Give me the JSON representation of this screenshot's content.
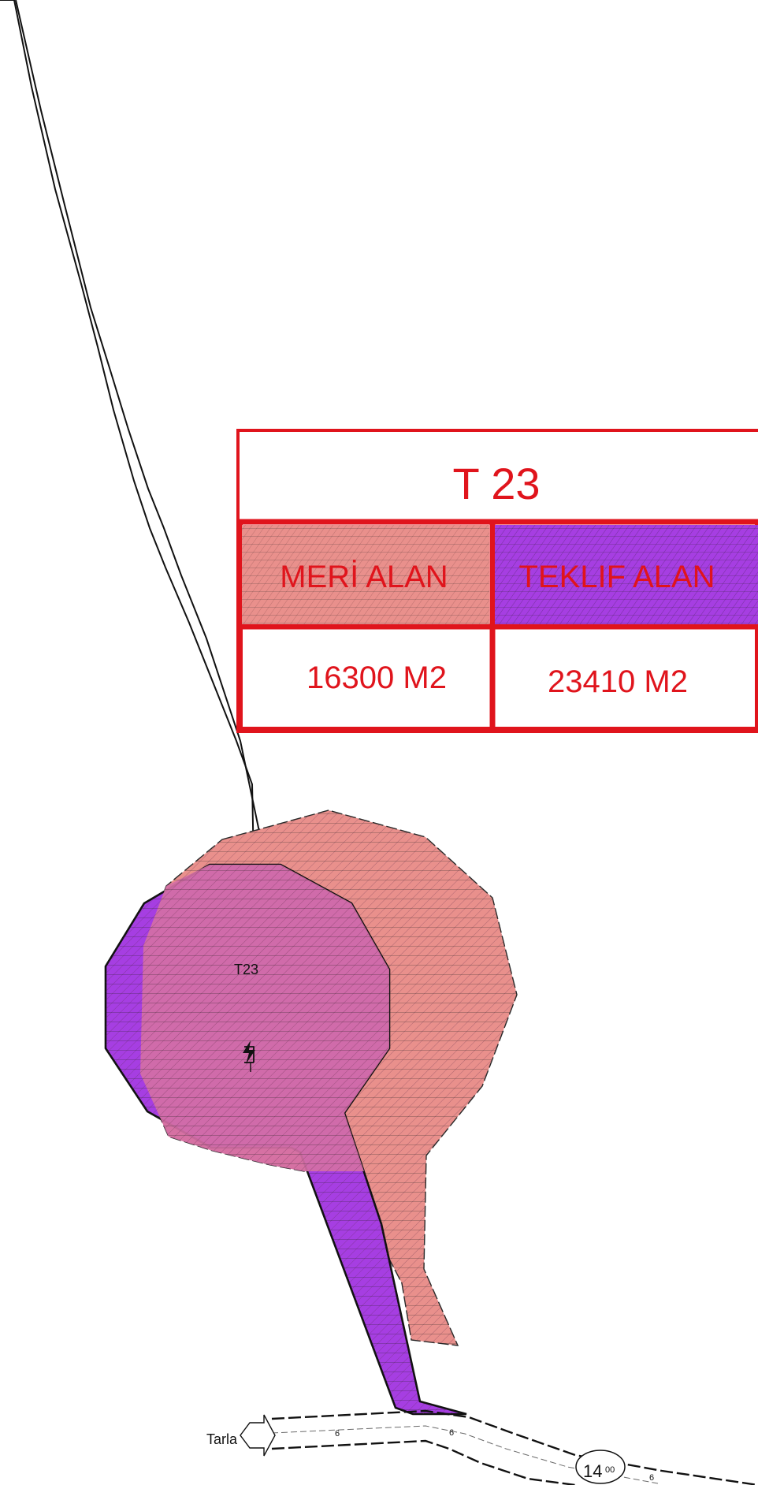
{
  "legend": {
    "title": "T 23",
    "existing_area_label": "MERİ ALAN",
    "proposed_area_label": "TEKLIF ALAN",
    "existing_area_value": "16300 M2",
    "proposed_area_value": "23410 M2"
  },
  "map": {
    "parcel_label": "T23",
    "road_destination_label": "Tarla",
    "road_width_label_1": "6",
    "road_width_label_2": "6",
    "road_width_label_3": "6",
    "road_width_badge_major": "14",
    "road_width_badge_minor": "00"
  },
  "colors": {
    "legend_border": "#e0141c",
    "legend_text": "#e0141c",
    "existing_area_fill": "#e9908c",
    "proposed_area_fill": "#a63ee2",
    "overlap_fill": "#d46fa5",
    "line_color": "#111111"
  },
  "icons": {
    "transformer": "transformer-symbol-icon",
    "road_direction": "left-arrow-icon"
  }
}
